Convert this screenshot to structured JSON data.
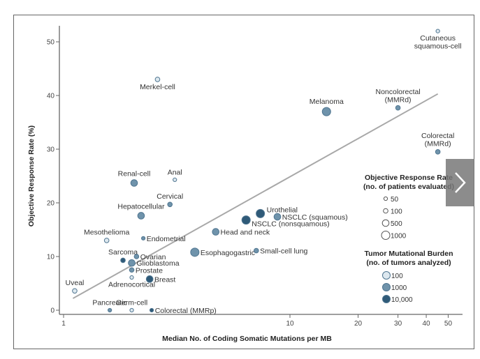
{
  "chart_data": {
    "type": "scatter",
    "title": "",
    "xlabel": "Median No. of Coding Somatic Mutations per MB",
    "ylabel": "Objective Response Rate (%)",
    "xscale": "log",
    "xlim": [
      0.93,
      55
    ],
    "ylim": [
      -1,
      53
    ],
    "x_ticks": [
      1,
      10,
      20,
      30,
      40,
      50
    ],
    "y_ticks": [
      0,
      10,
      20,
      30,
      40,
      50
    ],
    "grid": false,
    "trend_line": {
      "x": [
        1.1,
        45
      ],
      "y": [
        2.2,
        40.3
      ]
    },
    "points": [
      {
        "name": "Cutaneous squamous-cell",
        "label_lines": [
          "Cutaneous",
          "squamous-cell"
        ],
        "x": 45,
        "y": 52,
        "patients": 50,
        "tumors": 100,
        "label_pos": "below"
      },
      {
        "name": "Noncolorectal (MMRd)",
        "label_lines": [
          "Noncolorectal",
          "(MMRd)"
        ],
        "x": 30,
        "y": 37.7,
        "patients": 100,
        "tumors": 1000,
        "label_pos": "above"
      },
      {
        "name": "Colorectal (MMRd)",
        "label_lines": [
          "Colorectal",
          "(MMRd)"
        ],
        "x": 45,
        "y": 29.5,
        "patients": 100,
        "tumors": 1000,
        "label_pos": "above"
      },
      {
        "name": "Melanoma",
        "label_lines": [
          "Melanoma"
        ],
        "x": 14.5,
        "y": 37,
        "patients": 1000,
        "tumors": 1000,
        "label_pos": "above"
      },
      {
        "name": "Merkel-cell",
        "label_lines": [
          "Merkel-cell"
        ],
        "x": 2.6,
        "y": 43,
        "patients": 100,
        "tumors": 100,
        "label_pos": "below"
      },
      {
        "name": "Renal-cell",
        "label_lines": [
          "Renal-cell"
        ],
        "x": 2.05,
        "y": 23.7,
        "patients": 500,
        "tumors": 1000,
        "label_pos": "above"
      },
      {
        "name": "Anal",
        "label_lines": [
          "Anal"
        ],
        "x": 3.1,
        "y": 24.3,
        "patients": 50,
        "tumors": 100,
        "label_pos": "above"
      },
      {
        "name": "Cervical",
        "label_lines": [
          "Cervical"
        ],
        "x": 2.95,
        "y": 19.7,
        "patients": 100,
        "tumors": 1000,
        "label_pos": "above"
      },
      {
        "name": "Hepatocellular",
        "label_lines": [
          "Hepatocellular"
        ],
        "x": 2.2,
        "y": 17.6,
        "patients": 500,
        "tumors": 1000,
        "label_pos": "above"
      },
      {
        "name": "Urothelial",
        "label_lines": [
          "Urothelial"
        ],
        "x": 7.4,
        "y": 18,
        "patients": 1000,
        "tumors": 10000,
        "label_pos": "right-up"
      },
      {
        "name": "NSCLC (squamous)",
        "label_lines": [
          "NSCLC (squamous)"
        ],
        "x": 8.8,
        "y": 17.4,
        "patients": 500,
        "tumors": 1000,
        "label_pos": "right"
      },
      {
        "name": "NSCLC (nonsquamous)",
        "label_lines": [
          "NSCLC (nonsquamous)"
        ],
        "x": 6.4,
        "y": 16.8,
        "patients": 1000,
        "tumors": 10000,
        "label_pos": "right-down"
      },
      {
        "name": "Head and neck",
        "label_lines": [
          "Head and neck"
        ],
        "x": 4.7,
        "y": 14.6,
        "patients": 500,
        "tumors": 1000,
        "label_pos": "right"
      },
      {
        "name": "Endometrial",
        "label_lines": [
          "Endometrial"
        ],
        "x": 2.25,
        "y": 13.4,
        "patients": 50,
        "tumors": 1000,
        "label_pos": "right"
      },
      {
        "name": "Mesothelioma",
        "label_lines": [
          "Mesothelioma"
        ],
        "x": 1.55,
        "y": 13,
        "patients": 100,
        "tumors": 100,
        "label_pos": "above"
      },
      {
        "name": "Esophagogastric",
        "label_lines": [
          "Esophagogastric"
        ],
        "x": 3.8,
        "y": 10.8,
        "patients": 1000,
        "tumors": 1000,
        "label_pos": "right"
      },
      {
        "name": "Small-cell lung",
        "label_lines": [
          "Small-cell lung"
        ],
        "x": 7.1,
        "y": 11.1,
        "patients": 100,
        "tumors": 1000,
        "label_pos": "right"
      },
      {
        "name": "Sarcoma",
        "label_lines": [
          "Sarcoma"
        ],
        "x": 1.83,
        "y": 9.3,
        "patients": 100,
        "tumors": 10000,
        "label_pos": "above"
      },
      {
        "name": "Ovarian",
        "label_lines": [
          "Ovarian"
        ],
        "x": 2.1,
        "y": 10,
        "patients": 100,
        "tumors": 1000,
        "label_pos": "right"
      },
      {
        "name": "Glioblastoma",
        "label_lines": [
          "Glioblastoma"
        ],
        "x": 2.0,
        "y": 8.8,
        "patients": 500,
        "tumors": 1000,
        "label_pos": "right"
      },
      {
        "name": "Prostate",
        "label_lines": [
          "Prostate"
        ],
        "x": 2.0,
        "y": 7.5,
        "patients": 100,
        "tumors": 1000,
        "label_pos": "right"
      },
      {
        "name": "Adrenocortical",
        "label_lines": [
          "Adrenocortical"
        ],
        "x": 2.0,
        "y": 6.1,
        "patients": 50,
        "tumors": 100,
        "label_pos": "below"
      },
      {
        "name": "Breast",
        "label_lines": [
          "Breast"
        ],
        "x": 2.4,
        "y": 5.8,
        "patients": 500,
        "tumors": 10000,
        "label_pos": "right"
      },
      {
        "name": "Uveal",
        "label_lines": [
          "Uveal"
        ],
        "x": 1.12,
        "y": 3.6,
        "patients": 100,
        "tumors": 100,
        "label_pos": "above"
      },
      {
        "name": "Pancreatic",
        "label_lines": [
          "Pancreatic"
        ],
        "x": 1.6,
        "y": 0,
        "patients": 50,
        "tumors": 1000,
        "label_pos": "above"
      },
      {
        "name": "Germ-cell",
        "label_lines": [
          "Germ-cell"
        ],
        "x": 2.0,
        "y": 0,
        "patients": 50,
        "tumors": 100,
        "label_pos": "above"
      },
      {
        "name": "Colorectal (MMRp)",
        "label_lines": [
          "Colorectal (MMRp)"
        ],
        "x": 2.45,
        "y": 0,
        "patients": 50,
        "tumors": 10000,
        "label_pos": "right"
      }
    ],
    "legend": {
      "position": "right",
      "size_title": [
        "Objective Response Rate",
        "(no. of patients evaluated)"
      ],
      "size_entries": [
        {
          "label": "50",
          "patients": 50
        },
        {
          "label": "100",
          "patients": 100
        },
        {
          "label": "500",
          "patients": 500
        },
        {
          "label": "1000",
          "patients": 1000
        }
      ],
      "color_title": [
        "Tumor Mutational Burden",
        "(no. of tumors analyzed)"
      ],
      "color_entries": [
        {
          "label": "100",
          "tumors": 100
        },
        {
          "label": "1000",
          "tumors": 1000
        },
        {
          "label": "10,000",
          "tumors": 10000
        }
      ]
    },
    "colors": {
      "100": "#dde8ef",
      "1000": "#6f93ab",
      "10000": "#2f5a78",
      "stroke": "#4f7590",
      "trend": "#a8a8a8",
      "axis": "#666666"
    }
  },
  "ui": {
    "next_button_label": "next"
  }
}
